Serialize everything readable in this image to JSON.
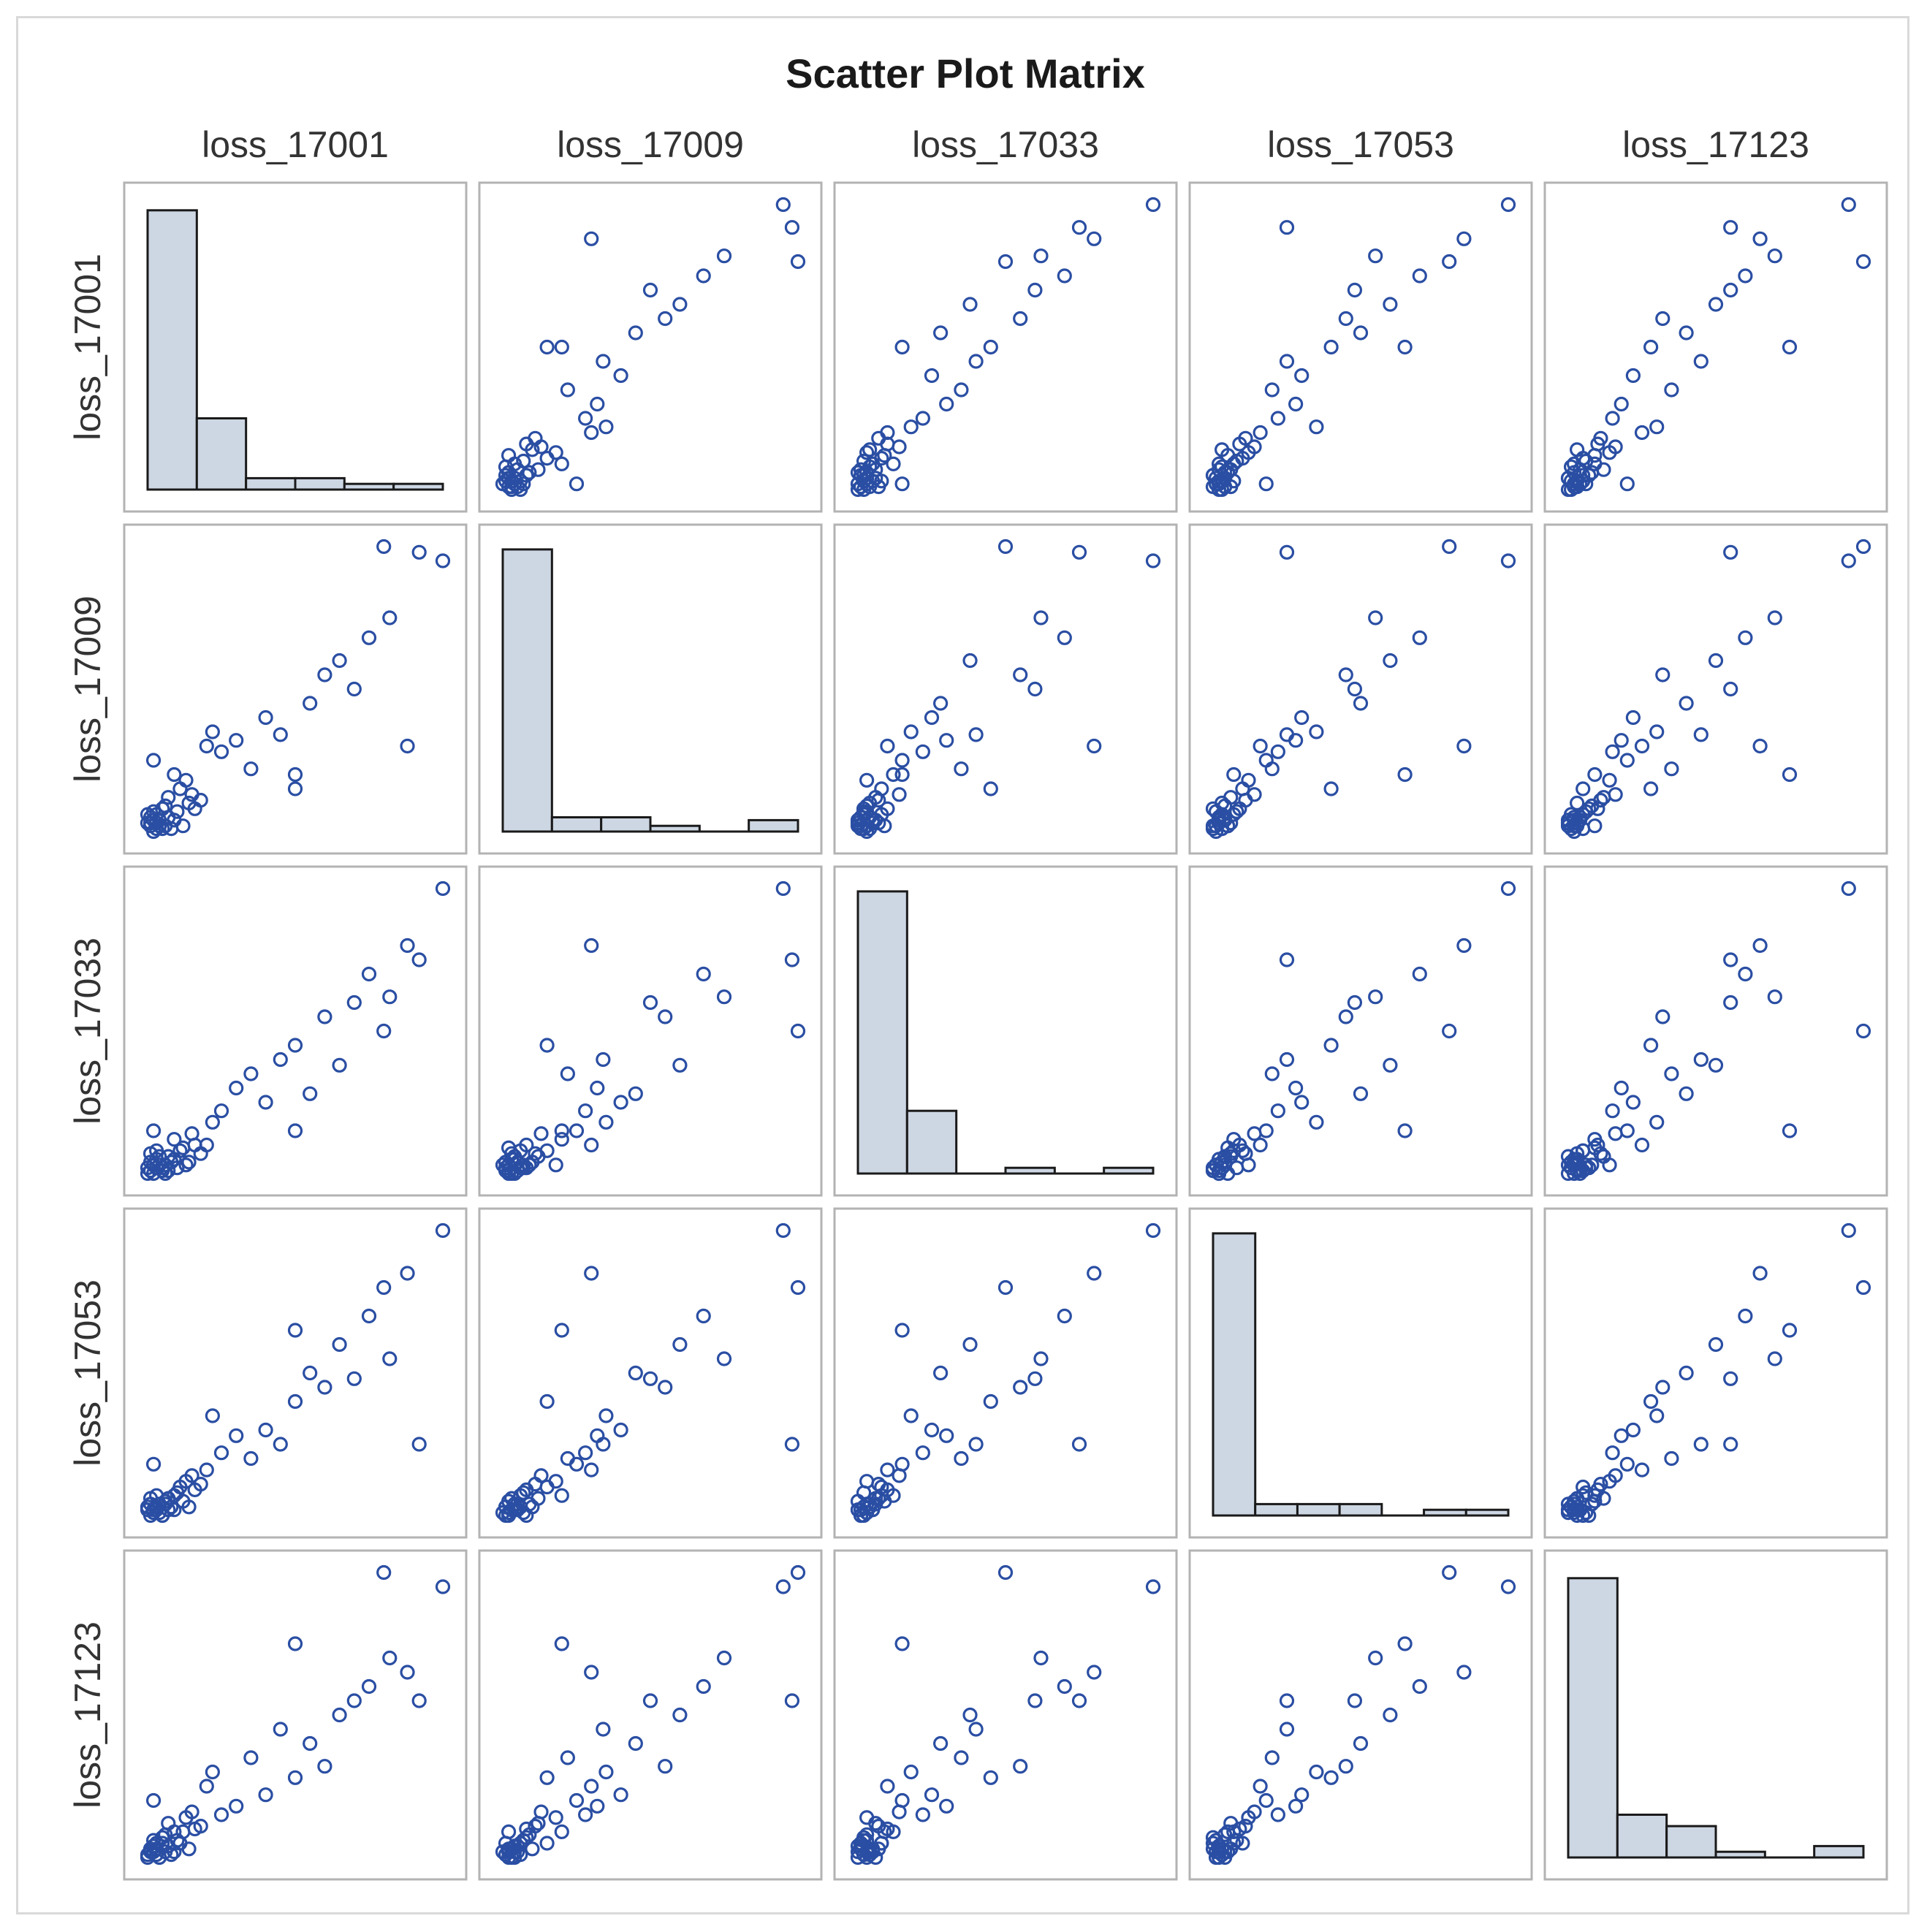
{
  "chart_data": {
    "type": "scatter-matrix",
    "title": "Scatter Plot Matrix",
    "variables": [
      "loss_17001",
      "loss_17009",
      "loss_17033",
      "loss_17053",
      "loss_17123"
    ],
    "diagonal": "histogram",
    "colors": {
      "marker": "#2a4ea3",
      "hist_fill": "#cdd6e3",
      "hist_stroke": "#1a1a1a",
      "cell_border": "#b3b3b3",
      "title": "#1a1a1a",
      "label": "#333333"
    },
    "histograms": {
      "loss_17001": [
        0.98,
        0.25,
        0.04,
        0.04,
        0.02,
        0.02
      ],
      "loss_17009": [
        0.99,
        0.05,
        0.05,
        0.02,
        0.0,
        0.04
      ],
      "loss_17033": [
        0.99,
        0.22,
        0.0,
        0.02,
        0.0,
        0.02
      ],
      "loss_17053": [
        0.99,
        0.04,
        0.04,
        0.04,
        0.0,
        0.02,
        0.02
      ],
      "loss_17123": [
        0.98,
        0.15,
        0.11,
        0.02,
        0.0,
        0.04
      ]
    },
    "observations": [
      [
        0.0,
        0.03,
        0.0,
        0.02,
        0.0
      ],
      [
        0.02,
        0.0,
        0.03,
        0.01,
        0.02
      ],
      [
        0.01,
        0.02,
        0.01,
        0.0,
        0.03
      ],
      [
        0.03,
        0.01,
        0.02,
        0.03,
        0.01
      ],
      [
        0.02,
        0.04,
        0.0,
        0.02,
        0.04
      ],
      [
        0.04,
        0.02,
        0.03,
        0.01,
        0.0
      ],
      [
        0.01,
        0.05,
        0.04,
        0.04,
        0.02
      ],
      [
        0.05,
        0.01,
        0.01,
        0.0,
        0.05
      ],
      [
        0.0,
        0.06,
        0.02,
        0.03,
        0.01
      ],
      [
        0.03,
        0.03,
        0.05,
        0.02,
        0.03
      ],
      [
        0.06,
        0.02,
        0.0,
        0.05,
        0.02
      ],
      [
        0.02,
        0.07,
        0.03,
        0.01,
        0.06
      ],
      [
        0.04,
        0.04,
        0.06,
        0.04,
        0.0
      ],
      [
        0.07,
        0.05,
        0.01,
        0.02,
        0.04
      ],
      [
        0.01,
        0.03,
        0.07,
        0.06,
        0.03
      ],
      [
        0.05,
        0.08,
        0.02,
        0.0,
        0.07
      ],
      [
        0.08,
        0.01,
        0.04,
        0.03,
        0.01
      ],
      [
        0.03,
        0.06,
        0.08,
        0.07,
        0.05
      ],
      [
        0.06,
        0.09,
        0.03,
        0.04,
        0.08
      ],
      [
        0.09,
        0.04,
        0.05,
        0.02,
        0.02
      ],
      [
        0.1,
        0.07,
        0.02,
        0.08,
        0.06
      ],
      [
        0.12,
        0.02,
        0.09,
        0.05,
        0.09
      ],
      [
        0.14,
        0.1,
        0.04,
        0.03,
        0.03
      ],
      [
        0.16,
        0.08,
        0.1,
        0.09,
        0.1
      ],
      [
        0.07,
        0.12,
        0.06,
        0.06,
        0.12
      ],
      [
        0.11,
        0.15,
        0.08,
        0.1,
        0.05
      ],
      [
        0.13,
        0.18,
        0.03,
        0.12,
        0.14
      ],
      [
        0.09,
        0.2,
        0.12,
        0.07,
        0.09
      ],
      [
        0.15,
        0.13,
        0.14,
        0.14,
        0.16
      ],
      [
        0.18,
        0.11,
        0.07,
        0.11,
        0.11
      ],
      [
        0.02,
        0.25,
        0.15,
        0.18,
        0.2
      ],
      [
        0.2,
        0.3,
        0.1,
        0.16,
        0.25
      ],
      [
        0.25,
        0.28,
        0.22,
        0.22,
        0.15
      ],
      [
        0.3,
        0.32,
        0.3,
        0.28,
        0.18
      ],
      [
        0.22,
        0.35,
        0.18,
        0.35,
        0.3
      ],
      [
        0.35,
        0.22,
        0.35,
        0.2,
        0.35
      ],
      [
        0.4,
        0.4,
        0.25,
        0.3,
        0.22
      ],
      [
        0.45,
        0.34,
        0.4,
        0.25,
        0.45
      ],
      [
        0.5,
        0.15,
        0.45,
        0.4,
        0.28
      ],
      [
        0.55,
        0.45,
        0.28,
        0.5,
        0.4
      ],
      [
        0.6,
        0.55,
        0.55,
        0.45,
        0.32
      ],
      [
        0.7,
        0.5,
        0.6,
        0.48,
        0.55
      ],
      [
        0.65,
        0.6,
        0.38,
        0.6,
        0.5
      ],
      [
        0.82,
        0.75,
        0.62,
        0.55,
        0.7
      ],
      [
        0.75,
        0.68,
        0.7,
        0.7,
        0.6
      ],
      [
        0.88,
        0.3,
        0.8,
        0.85,
        0.65
      ],
      [
        0.92,
        0.98,
        0.75,
        0.25,
        0.55
      ],
      [
        1.0,
        0.95,
        1.0,
        1.0,
        0.95
      ],
      [
        0.8,
        1.0,
        0.5,
        0.8,
        1.0
      ],
      [
        0.5,
        0.2,
        0.15,
        0.65,
        0.75
      ]
    ]
  }
}
